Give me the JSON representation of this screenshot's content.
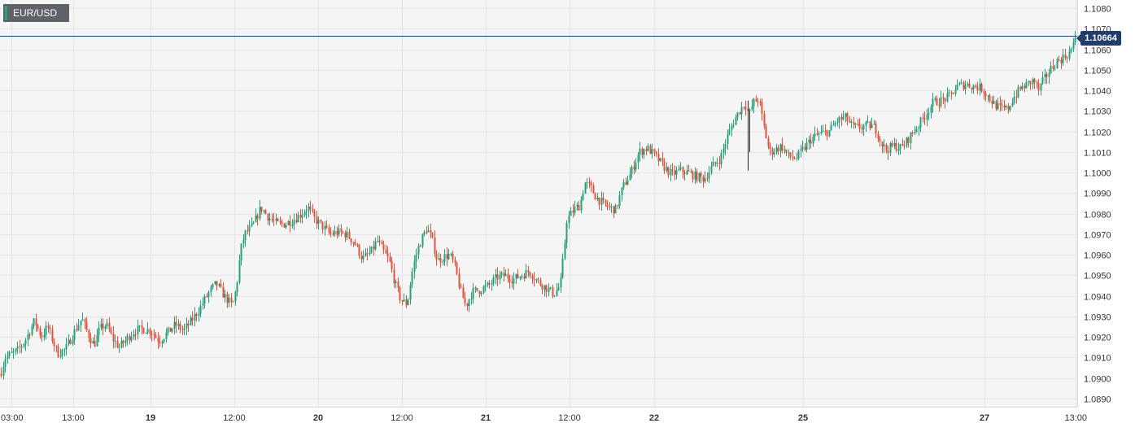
{
  "symbol": "EUR/USD",
  "last_price_label": "1.10664",
  "colors": {
    "up": "#26a17b",
    "down": "#e0533f",
    "price_line": "#213d6b",
    "grid": "#e4e4e8",
    "background": "#f5f5f6"
  },
  "chart_data": {
    "type": "candlestick",
    "title": "EUR/USD",
    "ylim": [
      1.0886,
      1.1084
    ],
    "y_ticks": [
      "1.0890",
      "1.0900",
      "1.0910",
      "1.0920",
      "1.0930",
      "1.0940",
      "1.0950",
      "1.0960",
      "1.0970",
      "1.0980",
      "1.0990",
      "1.1000",
      "1.1010",
      "1.1020",
      "1.1030",
      "1.1040",
      "1.1050",
      "1.1060",
      "1.1070",
      "1.1080"
    ],
    "x_ticks": [
      {
        "label": "03:00",
        "bold": false
      },
      {
        "label": "13:00",
        "bold": false
      },
      {
        "label": "19",
        "bold": true
      },
      {
        "label": "12:00",
        "bold": false
      },
      {
        "label": "20",
        "bold": true
      },
      {
        "label": "12:00",
        "bold": false
      },
      {
        "label": "21",
        "bold": true
      },
      {
        "label": "12:00",
        "bold": false
      },
      {
        "label": "22",
        "bold": true
      },
      {
        "label": "25",
        "bold": true
      },
      {
        "label": "27",
        "bold": true
      },
      {
        "label": "13:00",
        "bold": false
      }
    ],
    "last_price": 1.10664,
    "price_path": [
      [
        0,
        1.0902
      ],
      [
        6,
        1.091
      ],
      [
        20,
        1.0913
      ],
      [
        30,
        1.0918
      ],
      [
        42,
        1.0928
      ],
      [
        50,
        1.092
      ],
      [
        58,
        1.0925
      ],
      [
        70,
        1.0912
      ],
      [
        80,
        1.0914
      ],
      [
        90,
        1.0922
      ],
      [
        100,
        1.0929
      ],
      [
        108,
        1.0921
      ],
      [
        115,
        1.0916
      ],
      [
        122,
        1.0924
      ],
      [
        130,
        1.0926
      ],
      [
        138,
        1.0919
      ],
      [
        146,
        1.0915
      ],
      [
        155,
        1.0919
      ],
      [
        165,
        1.0923
      ],
      [
        175,
        1.0924
      ],
      [
        185,
        1.0923
      ],
      [
        195,
        1.0918
      ],
      [
        205,
        1.0922
      ],
      [
        215,
        1.0926
      ],
      [
        225,
        1.0923
      ],
      [
        235,
        1.0928
      ],
      [
        245,
        1.0934
      ],
      [
        255,
        1.0941
      ],
      [
        265,
        1.0946
      ],
      [
        275,
        1.094
      ],
      [
        285,
        1.0935
      ],
      [
        290,
        1.0944
      ],
      [
        295,
        1.0962
      ],
      [
        300,
        1.097
      ],
      [
        310,
        1.0974
      ],
      [
        320,
        1.0983
      ],
      [
        330,
        1.0978
      ],
      [
        340,
        1.0975
      ],
      [
        350,
        1.0975
      ],
      [
        360,
        1.0977
      ],
      [
        370,
        1.098
      ],
      [
        378,
        1.0983
      ],
      [
        385,
        1.0978
      ],
      [
        395,
        1.0974
      ],
      [
        405,
        1.097
      ],
      [
        415,
        1.0971
      ],
      [
        425,
        1.097
      ],
      [
        435,
        1.0966
      ],
      [
        445,
        1.0958
      ],
      [
        455,
        1.0961
      ],
      [
        463,
        1.0967
      ],
      [
        470,
        1.0962
      ],
      [
        478,
        1.0957
      ],
      [
        485,
        1.0946
      ],
      [
        492,
        1.0938
      ],
      [
        500,
        1.0936
      ],
      [
        505,
        1.095
      ],
      [
        512,
        1.0962
      ],
      [
        518,
        1.0968
      ],
      [
        524,
        1.0973
      ],
      [
        530,
        1.0968
      ],
      [
        537,
        1.0957
      ],
      [
        545,
        1.0959
      ],
      [
        552,
        1.096
      ],
      [
        558,
        1.0955
      ],
      [
        565,
        1.0943
      ],
      [
        572,
        1.0935
      ],
      [
        580,
        1.0942
      ],
      [
        590,
        1.0943
      ],
      [
        600,
        1.0945
      ],
      [
        610,
        1.0949
      ],
      [
        620,
        1.095
      ],
      [
        630,
        1.0948
      ],
      [
        640,
        1.095
      ],
      [
        650,
        1.0952
      ],
      [
        660,
        1.0947
      ],
      [
        670,
        1.0944
      ],
      [
        680,
        1.0941
      ],
      [
        688,
        1.0945
      ],
      [
        692,
        1.096
      ],
      [
        696,
        1.0977
      ],
      [
        705,
        1.0982
      ],
      [
        712,
        1.0984
      ],
      [
        718,
        1.0995
      ],
      [
        725,
        1.0993
      ],
      [
        732,
        1.0988
      ],
      [
        740,
        1.0985
      ],
      [
        748,
        1.0983
      ],
      [
        756,
        1.0982
      ],
      [
        765,
        1.0993
      ],
      [
        775,
        1.1
      ],
      [
        785,
        1.101
      ],
      [
        795,
        1.1012
      ],
      [
        805,
        1.1008
      ],
      [
        815,
        1.1003
      ],
      [
        825,
        1.0999
      ],
      [
        835,
        1.1001
      ],
      [
        845,
        1.1
      ],
      [
        855,
        1.0998
      ],
      [
        865,
        1.0997
      ],
      [
        875,
        1.1003
      ],
      [
        885,
        1.1007
      ],
      [
        892,
        1.1016
      ],
      [
        900,
        1.1024
      ],
      [
        908,
        1.103
      ],
      [
        915,
        1.1034
      ],
      [
        920,
        1.1028
      ],
      [
        925,
        1.1034
      ],
      [
        932,
        1.1036
      ],
      [
        938,
        1.1023
      ],
      [
        945,
        1.101
      ],
      [
        952,
        1.1011
      ],
      [
        960,
        1.1013
      ],
      [
        968,
        1.1008
      ],
      [
        978,
        1.1007
      ],
      [
        988,
        1.1012
      ],
      [
        998,
        1.1017
      ],
      [
        1008,
        1.1019
      ],
      [
        1018,
        1.102
      ],
      [
        1028,
        1.1025
      ],
      [
        1038,
        1.1027
      ],
      [
        1048,
        1.1022
      ],
      [
        1058,
        1.1022
      ],
      [
        1068,
        1.1023
      ],
      [
        1075,
        1.1022
      ],
      [
        1082,
        1.1015
      ],
      [
        1088,
        1.1011
      ],
      [
        1098,
        1.1013
      ],
      [
        1108,
        1.1012
      ],
      [
        1115,
        1.1016
      ],
      [
        1122,
        1.102
      ],
      [
        1130,
        1.1024
      ],
      [
        1138,
        1.1029
      ],
      [
        1146,
        1.1034
      ],
      [
        1156,
        1.1035
      ],
      [
        1166,
        1.1037
      ],
      [
        1176,
        1.1042
      ],
      [
        1186,
        1.1043
      ],
      [
        1196,
        1.1042
      ],
      [
        1206,
        1.1041
      ],
      [
        1214,
        1.1037
      ],
      [
        1222,
        1.1033
      ],
      [
        1230,
        1.1031
      ],
      [
        1238,
        1.1031
      ],
      [
        1246,
        1.1037
      ],
      [
        1254,
        1.1041
      ],
      [
        1262,
        1.1043
      ],
      [
        1270,
        1.1045
      ],
      [
        1276,
        1.104
      ],
      [
        1282,
        1.1045
      ],
      [
        1290,
        1.105
      ],
      [
        1298,
        1.1054
      ],
      [
        1306,
        1.1056
      ],
      [
        1313,
        1.1058
      ],
      [
        1318,
        1.1061
      ],
      [
        1321,
        1.1066
      ]
    ]
  }
}
